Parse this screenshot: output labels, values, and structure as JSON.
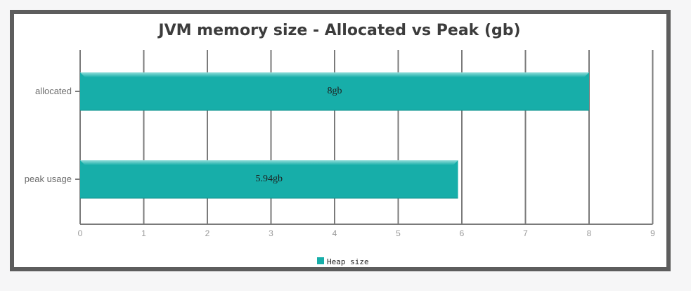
{
  "chart_data": {
    "type": "bar",
    "orientation": "horizontal",
    "title": "JVM memory size - Allocated vs Peak (gb)",
    "categories": [
      "allocated",
      "peak usage"
    ],
    "series": [
      {
        "name": "Heap size",
        "values": [
          8,
          5.94
        ],
        "labels": [
          "8gb",
          "5.94gb"
        ]
      }
    ],
    "xlim": [
      0,
      9
    ],
    "xticks": [
      "0",
      "1",
      "2",
      "3",
      "4",
      "5",
      "6",
      "7",
      "8",
      "9"
    ],
    "grid": true,
    "legend_position": "bottom-center",
    "colors": {
      "bar": "#17aea9",
      "bar_highlight": "#74d3cf",
      "grid": "#7a7a7a",
      "frame": "#5d5d5d"
    }
  }
}
